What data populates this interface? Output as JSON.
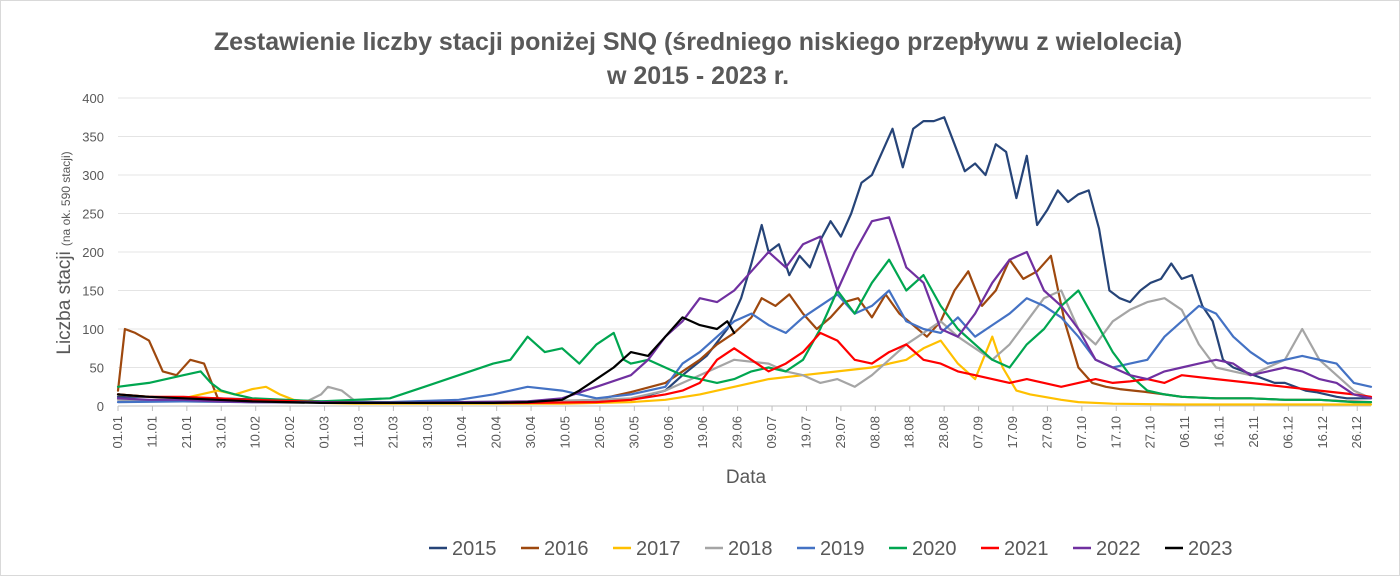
{
  "chart_data": {
    "type": "line",
    "title_line1": "Zestawienie liczby stacji poniżej SNQ (średniego niskiego przepływu z wielolecia)",
    "title_line2": "w 2015 - 2023 r.",
    "xlabel": "Data",
    "ylabel_main": "Liczba stacji",
    "ylabel_sub": "(na ok. 590 stacji)",
    "ylim": [
      0,
      400
    ],
    "y_ticks": [
      "0",
      "50",
      "100",
      "150",
      "200",
      "250",
      "300",
      "350",
      "400"
    ],
    "x_ticks": [
      "01.01",
      "11.01",
      "21.01",
      "31.01",
      "10.02",
      "20.02",
      "01.03",
      "11.03",
      "21.03",
      "31.03",
      "10.04",
      "20.04",
      "30.04",
      "10.05",
      "20.05",
      "30.05",
      "09.06",
      "19.06",
      "29.06",
      "09.07",
      "19.07",
      "29.07",
      "08.08",
      "18.08",
      "28.08",
      "07.09",
      "17.09",
      "27.09",
      "07.10",
      "17.10",
      "27.10",
      "06.11",
      "16.11",
      "26.11",
      "06.12",
      "16.12",
      "26.12"
    ],
    "grid": "horizontal",
    "legend_position": "bottom",
    "series": [
      {
        "name": "2015",
        "color": "#264478",
        "x": [
          1,
          10,
          30,
          60,
          90,
          120,
          140,
          150,
          160,
          165,
          172,
          178,
          182,
          185,
          188,
          190,
          193,
          196,
          199,
          202,
          205,
          208,
          211,
          214,
          217,
          220,
          223,
          226,
          229,
          232,
          235,
          238,
          241,
          244,
          247,
          250,
          253,
          256,
          259,
          262,
          265,
          268,
          271,
          274,
          277,
          280,
          283,
          286,
          289,
          292,
          295,
          298,
          301,
          304,
          307,
          310,
          313,
          316,
          319,
          322,
          325,
          328,
          331,
          334,
          337,
          340,
          343,
          346,
          349,
          352,
          355,
          358,
          361,
          365
        ],
        "y": [
          12,
          12,
          10,
          6,
          4,
          4,
          5,
          8,
          20,
          40,
          65,
          100,
          140,
          185,
          235,
          200,
          210,
          170,
          195,
          180,
          215,
          240,
          220,
          250,
          290,
          300,
          330,
          360,
          310,
          360,
          370,
          370,
          375,
          340,
          305,
          315,
          300,
          340,
          330,
          270,
          325,
          235,
          255,
          280,
          265,
          275,
          280,
          230,
          150,
          140,
          135,
          150,
          160,
          165,
          185,
          165,
          170,
          130,
          110,
          60,
          50,
          45,
          40,
          35,
          30,
          30,
          25,
          20,
          18,
          15,
          12,
          10,
          10,
          10
        ]
      },
      {
        "name": "2016",
        "color": "#9e480e",
        "x": [
          1,
          3,
          6,
          10,
          14,
          18,
          22,
          26,
          30,
          35,
          40,
          60,
          90,
          120,
          140,
          150,
          160,
          165,
          170,
          175,
          180,
          185,
          188,
          192,
          196,
          200,
          204,
          208,
          212,
          216,
          220,
          224,
          228,
          232,
          236,
          240,
          244,
          248,
          252,
          256,
          260,
          264,
          268,
          272,
          276,
          280,
          284,
          288,
          292,
          296,
          300,
          305,
          310,
          320,
          330,
          340,
          350,
          358,
          365
        ],
        "y": [
          20,
          100,
          95,
          85,
          45,
          40,
          60,
          55,
          10,
          8,
          6,
          5,
          4,
          4,
          8,
          18,
          30,
          45,
          60,
          80,
          95,
          115,
          140,
          130,
          145,
          120,
          100,
          115,
          135,
          140,
          115,
          145,
          120,
          105,
          90,
          110,
          150,
          175,
          130,
          150,
          190,
          165,
          175,
          195,
          110,
          50,
          30,
          25,
          22,
          20,
          18,
          15,
          12,
          10,
          10,
          8,
          8,
          6,
          5
        ]
      },
      {
        "name": "2017",
        "color": "#ffc000",
        "x": [
          1,
          10,
          20,
          30,
          35,
          40,
          44,
          48,
          52,
          56,
          60,
          70,
          80,
          90,
          110,
          130,
          150,
          160,
          170,
          180,
          190,
          200,
          210,
          220,
          230,
          235,
          240,
          245,
          250,
          255,
          258,
          262,
          266,
          270,
          275,
          280,
          290,
          310,
          330,
          350,
          365
        ],
        "y": [
          15,
          12,
          10,
          20,
          15,
          22,
          25,
          15,
          8,
          6,
          4,
          3,
          3,
          3,
          3,
          3,
          5,
          8,
          15,
          25,
          35,
          40,
          45,
          50,
          60,
          75,
          85,
          55,
          35,
          90,
          50,
          20,
          15,
          12,
          8,
          5,
          3,
          2,
          2,
          2,
          2
        ]
      },
      {
        "name": "2018",
        "color": "#a5a5a5",
        "x": [
          1,
          20,
          40,
          55,
          60,
          62,
          66,
          70,
          80,
          100,
          120,
          140,
          150,
          160,
          170,
          180,
          190,
          195,
          200,
          205,
          210,
          215,
          220,
          225,
          230,
          235,
          240,
          245,
          250,
          255,
          260,
          265,
          270,
          275,
          280,
          285,
          290,
          295,
          300,
          305,
          310,
          315,
          320,
          325,
          330,
          335,
          340,
          345,
          350,
          355,
          360,
          365
        ],
        "y": [
          8,
          6,
          5,
          4,
          15,
          25,
          20,
          6,
          5,
          5,
          6,
          8,
          10,
          20,
          40,
          60,
          55,
          45,
          40,
          30,
          35,
          25,
          40,
          60,
          80,
          95,
          110,
          90,
          75,
          60,
          80,
          110,
          140,
          150,
          100,
          80,
          110,
          125,
          135,
          140,
          125,
          80,
          50,
          45,
          40,
          50,
          60,
          100,
          60,
          40,
          20,
          10
        ]
      },
      {
        "name": "2019",
        "color": "#4472c4",
        "x": [
          1,
          20,
          40,
          60,
          80,
          100,
          110,
          120,
          130,
          140,
          150,
          160,
          165,
          170,
          175,
          180,
          185,
          190,
          195,
          200,
          205,
          210,
          215,
          220,
          225,
          230,
          235,
          240,
          245,
          250,
          255,
          260,
          265,
          270,
          275,
          280,
          285,
          290,
          295,
          300,
          305,
          310,
          315,
          320,
          325,
          330,
          335,
          340,
          345,
          350,
          355,
          360,
          365
        ],
        "y": [
          5,
          6,
          5,
          5,
          5,
          8,
          15,
          25,
          20,
          10,
          15,
          25,
          55,
          70,
          90,
          110,
          120,
          105,
          95,
          115,
          130,
          145,
          120,
          130,
          150,
          110,
          100,
          95,
          115,
          90,
          105,
          120,
          140,
          130,
          115,
          90,
          60,
          50,
          55,
          60,
          90,
          110,
          130,
          120,
          90,
          70,
          55,
          60,
          65,
          60,
          55,
          30,
          25
        ]
      },
      {
        "name": "2020",
        "color": "#00a650",
        "x": [
          1,
          10,
          20,
          25,
          28,
          31,
          35,
          40,
          50,
          60,
          70,
          80,
          90,
          100,
          110,
          115,
          120,
          125,
          130,
          135,
          140,
          145,
          148,
          150,
          155,
          160,
          165,
          170,
          175,
          180,
          185,
          190,
          195,
          200,
          205,
          210,
          215,
          220,
          225,
          230,
          235,
          240,
          245,
          250,
          255,
          260,
          265,
          270,
          275,
          280,
          285,
          290,
          295,
          300,
          305,
          310,
          320,
          330,
          340,
          350,
          360,
          365
        ],
        "y": [
          25,
          30,
          40,
          45,
          30,
          20,
          15,
          10,
          8,
          6,
          8,
          10,
          25,
          40,
          55,
          60,
          90,
          70,
          75,
          55,
          80,
          95,
          60,
          55,
          60,
          50,
          40,
          35,
          30,
          35,
          45,
          50,
          45,
          60,
          100,
          150,
          120,
          160,
          190,
          150,
          170,
          130,
          100,
          80,
          60,
          50,
          80,
          100,
          130,
          150,
          110,
          70,
          40,
          20,
          15,
          12,
          10,
          10,
          8,
          8,
          5,
          5
        ]
      },
      {
        "name": "2021",
        "color": "#ff0000",
        "x": [
          1,
          10,
          20,
          30,
          40,
          60,
          80,
          100,
          120,
          140,
          150,
          160,
          165,
          170,
          175,
          180,
          185,
          190,
          195,
          200,
          205,
          210,
          215,
          220,
          225,
          230,
          235,
          240,
          245,
          250,
          255,
          260,
          265,
          270,
          275,
          280,
          285,
          290,
          295,
          300,
          305,
          310,
          320,
          330,
          340,
          350,
          360,
          365
        ],
        "y": [
          15,
          12,
          12,
          10,
          8,
          5,
          4,
          4,
          4,
          5,
          8,
          15,
          20,
          30,
          60,
          75,
          60,
          45,
          55,
          70,
          95,
          85,
          60,
          55,
          70,
          80,
          60,
          55,
          45,
          40,
          35,
          30,
          35,
          30,
          25,
          30,
          35,
          30,
          32,
          35,
          30,
          40,
          35,
          30,
          25,
          20,
          15,
          12
        ]
      },
      {
        "name": "2022",
        "color": "#7030a0",
        "x": [
          1,
          10,
          20,
          30,
          40,
          60,
          80,
          100,
          120,
          130,
          140,
          150,
          155,
          160,
          165,
          170,
          175,
          180,
          185,
          190,
          195,
          200,
          205,
          210,
          215,
          220,
          225,
          230,
          235,
          240,
          245,
          250,
          255,
          260,
          265,
          270,
          275,
          280,
          285,
          290,
          295,
          300,
          305,
          310,
          315,
          320,
          325,
          330,
          335,
          340,
          345,
          350,
          355,
          360,
          365
        ],
        "y": [
          10,
          8,
          8,
          6,
          5,
          5,
          4,
          5,
          6,
          10,
          25,
          40,
          60,
          90,
          110,
          140,
          135,
          150,
          175,
          200,
          180,
          210,
          220,
          150,
          200,
          240,
          245,
          180,
          160,
          100,
          90,
          120,
          160,
          190,
          200,
          150,
          130,
          100,
          60,
          50,
          40,
          35,
          45,
          50,
          55,
          60,
          55,
          40,
          45,
          50,
          45,
          35,
          30,
          15,
          10
        ]
      },
      {
        "name": "2023",
        "color": "#000000",
        "x": [
          1,
          10,
          20,
          30,
          40,
          50,
          60,
          70,
          80,
          90,
          100,
          110,
          120,
          130,
          135,
          140,
          145,
          150,
          155,
          160,
          165,
          170,
          175,
          178,
          180
        ],
        "y": [
          15,
          12,
          10,
          8,
          6,
          5,
          4,
          4,
          4,
          4,
          4,
          4,
          5,
          8,
          20,
          35,
          50,
          70,
          65,
          90,
          115,
          105,
          100,
          110,
          95
        ]
      }
    ]
  }
}
